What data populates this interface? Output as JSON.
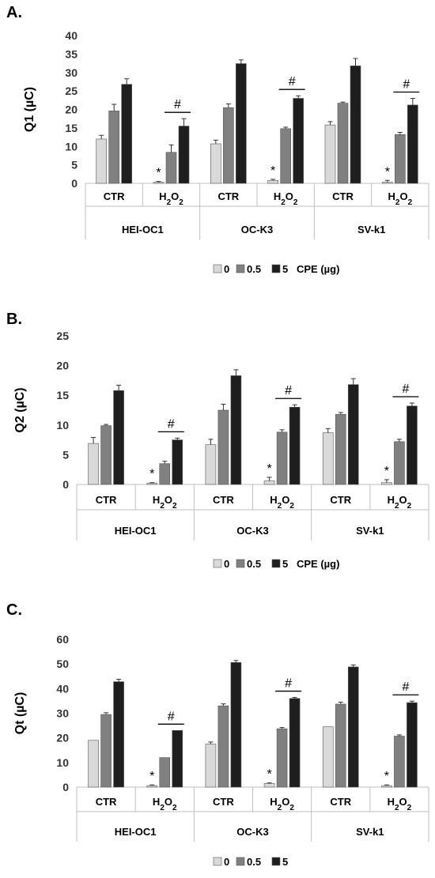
{
  "chart_data": [
    {
      "type": "bar",
      "panel_label": "A.",
      "ylabel": "Q1 (µC)",
      "yticks": [
        "0",
        "5",
        "10",
        "15",
        "20",
        "25",
        "30",
        "35",
        "40"
      ],
      "ylim": [
        0,
        40
      ],
      "groups": [
        "HEI-OC1",
        "OC-K3",
        "SV-k1"
      ],
      "conditions": [
        "CTR",
        "H2O2"
      ],
      "categories": [
        "HEI-OC1 CTR",
        "HEI-OC1 H2O2",
        "OC-K3 CTR",
        "OC-K3 H2O2",
        "SV-k1 CTR",
        "SV-k1 H2O2"
      ],
      "series": [
        {
          "name": "0",
          "color": "#d9d9d9",
          "values": [
            12.0,
            0.3,
            10.7,
            0.8,
            15.8,
            0.3
          ],
          "errors": [
            1.0,
            0.2,
            1.0,
            0.3,
            0.9,
            0.5
          ]
        },
        {
          "name": "0.5",
          "color": "#808080",
          "values": [
            19.6,
            8.4,
            20.5,
            14.8,
            21.7,
            13.2
          ],
          "errors": [
            1.8,
            2.0,
            1.0,
            0.4,
            0.3,
            0.6
          ]
        },
        {
          "name": "5",
          "color": "#1e1e1e",
          "values": [
            26.8,
            15.5,
            32.4,
            23.0,
            31.8,
            21.2
          ],
          "errors": [
            1.5,
            2.0,
            1.0,
            0.7,
            2.0,
            1.8
          ]
        }
      ],
      "star_label": "*",
      "hash_label": "#",
      "legend_title": "CPE (µg)",
      "grid": false
    },
    {
      "type": "bar",
      "panel_label": "B.",
      "ylabel": "Q2 (µC)",
      "yticks": [
        "0",
        "5",
        "10",
        "15",
        "20",
        "25"
      ],
      "ylim": [
        0,
        25
      ],
      "groups": [
        "HEI-OC1",
        "OC-K3",
        "SV-k1"
      ],
      "conditions": [
        "CTR",
        "H2O2"
      ],
      "categories": [
        "HEI-OC1 CTR",
        "HEI-OC1 H2O2",
        "OC-K3 CTR",
        "OC-K3 H2O2",
        "SV-k1 CTR",
        "SV-k1 H2O2"
      ],
      "series": [
        {
          "name": "0",
          "color": "#d9d9d9",
          "values": [
            6.9,
            0.2,
            6.7,
            0.6,
            8.7,
            0.3
          ],
          "errors": [
            1.0,
            0.1,
            0.9,
            0.6,
            0.7,
            0.5
          ]
        },
        {
          "name": "0.5",
          "color": "#808080",
          "values": [
            9.9,
            3.5,
            12.5,
            8.8,
            11.8,
            7.2
          ],
          "errors": [
            0.2,
            0.4,
            1.0,
            0.4,
            0.3,
            0.4
          ]
        },
        {
          "name": "5",
          "color": "#1e1e1e",
          "values": [
            15.8,
            7.5,
            18.3,
            13.0,
            16.8,
            13.2
          ],
          "errors": [
            0.9,
            0.3,
            1.0,
            0.4,
            1.0,
            0.5
          ]
        }
      ],
      "star_label": "*",
      "hash_label": "#",
      "legend_title": "CPE (µg)",
      "grid": false
    },
    {
      "type": "bar",
      "panel_label": "C.",
      "ylabel": "Qt (µC)",
      "yticks": [
        "0",
        "10",
        "20",
        "30",
        "40",
        "50",
        "60"
      ],
      "ylim": [
        0,
        60
      ],
      "groups": [
        "HEI-OC1",
        "OC-K3",
        "SV-k1"
      ],
      "conditions": [
        "CTR",
        "H2O2"
      ],
      "categories": [
        "HEI-OC1 CTR",
        "HEI-OC1 H2O2",
        "OC-K3 CTR",
        "OC-K3 H2O2",
        "SV-k1 CTR",
        "SV-k1 H2O2"
      ],
      "series": [
        {
          "name": "0",
          "color": "#d9d9d9",
          "values": [
            19.0,
            0.6,
            17.5,
            1.5,
            24.5,
            0.6
          ],
          "errors": [
            0.0,
            0.3,
            0.8,
            0.2,
            0.0,
            0.3
          ]
        },
        {
          "name": "0.5",
          "color": "#808080",
          "values": [
            29.5,
            12.0,
            33.0,
            23.7,
            33.7,
            20.7
          ],
          "errors": [
            0.7,
            0.0,
            0.8,
            0.5,
            0.8,
            0.5
          ]
        },
        {
          "name": "5",
          "color": "#1e1e1e",
          "values": [
            42.8,
            23.0,
            50.6,
            36.0,
            48.8,
            34.3
          ],
          "errors": [
            1.0,
            0.0,
            0.8,
            0.4,
            0.8,
            0.6
          ]
        }
      ],
      "star_label": "*",
      "hash_label": "#",
      "legend_title": "",
      "grid": false
    }
  ]
}
